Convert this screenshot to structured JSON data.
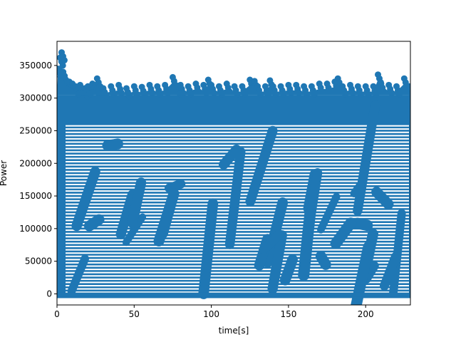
{
  "chart_data": {
    "type": "scatter",
    "title": "",
    "xlabel": "time[s]",
    "ylabel": "Power",
    "xlim": [
      0,
      229
    ],
    "ylim": [
      -17000,
      387000
    ],
    "xticks": [
      0,
      50,
      100,
      150,
      200
    ],
    "yticks": [
      0,
      50000,
      100000,
      150000,
      200000,
      250000,
      300000,
      350000
    ],
    "grid": false,
    "marker_color": "#1f77b4",
    "band_color": "#ffffff",
    "series": [
      {
        "values_description_omitted": true,
        "dense_band": {
          "y_min": 0,
          "y_max": 305000
        },
        "top_envelope": [
          [
            0.5,
            345000
          ],
          [
            2,
            362000
          ],
          [
            3,
            370000
          ],
          [
            4,
            340000
          ],
          [
            5,
            330000
          ],
          [
            8,
            325000
          ],
          [
            10,
            322000
          ],
          [
            12,
            318000
          ],
          [
            15,
            320000
          ],
          [
            18,
            315000
          ],
          [
            20,
            318000
          ],
          [
            23,
            322000
          ],
          [
            25,
            320000
          ],
          [
            26,
            330000
          ],
          [
            28,
            318000
          ],
          [
            30,
            315000
          ],
          [
            35,
            318000
          ],
          [
            40,
            320000
          ],
          [
            45,
            315000
          ],
          [
            50,
            318000
          ],
          [
            55,
            317000
          ],
          [
            60,
            320000
          ],
          [
            65,
            318000
          ],
          [
            70,
            320000
          ],
          [
            75,
            332000
          ],
          [
            78,
            318000
          ],
          [
            80,
            320000
          ],
          [
            85,
            318000
          ],
          [
            90,
            322000
          ],
          [
            95,
            320000
          ],
          [
            98,
            328000
          ],
          [
            100,
            320000
          ],
          [
            105,
            318000
          ],
          [
            110,
            322000
          ],
          [
            115,
            318000
          ],
          [
            120,
            318000
          ],
          [
            125,
            328000
          ],
          [
            128,
            326000
          ],
          [
            130,
            318000
          ],
          [
            135,
            318000
          ],
          [
            138,
            327000
          ],
          [
            140,
            318000
          ],
          [
            145,
            318000
          ],
          [
            150,
            320000
          ],
          [
            155,
            320000
          ],
          [
            160,
            318000
          ],
          [
            165,
            318000
          ],
          [
            170,
            322000
          ],
          [
            175,
            322000
          ],
          [
            180,
            325000
          ],
          [
            182,
            330000
          ],
          [
            185,
            318000
          ],
          [
            190,
            320000
          ],
          [
            195,
            318000
          ],
          [
            200,
            318000
          ],
          [
            205,
            318000
          ],
          [
            208,
            336000
          ],
          [
            210,
            322000
          ],
          [
            215,
            320000
          ],
          [
            220,
            318000
          ],
          [
            225,
            330000
          ],
          [
            228,
            318000
          ]
        ]
      }
    ]
  }
}
